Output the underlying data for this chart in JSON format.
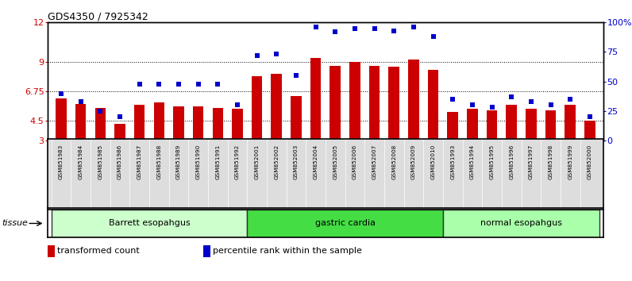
{
  "title": "GDS4350 / 7925342",
  "samples": [
    "GSM851983",
    "GSM851984",
    "GSM851985",
    "GSM851986",
    "GSM851987",
    "GSM851988",
    "GSM851989",
    "GSM851990",
    "GSM851991",
    "GSM851992",
    "GSM852001",
    "GSM852002",
    "GSM852003",
    "GSM852004",
    "GSM852005",
    "GSM852006",
    "GSM852007",
    "GSM852008",
    "GSM852009",
    "GSM852010",
    "GSM851993",
    "GSM851994",
    "GSM851995",
    "GSM851996",
    "GSM851997",
    "GSM851998",
    "GSM851999",
    "GSM852000"
  ],
  "bar_values": [
    6.2,
    5.8,
    5.5,
    4.3,
    5.7,
    5.9,
    5.6,
    5.6,
    5.5,
    5.4,
    7.9,
    8.1,
    6.4,
    9.3,
    8.7,
    9.0,
    8.7,
    8.6,
    9.2,
    8.4,
    5.2,
    5.4,
    5.3,
    5.7,
    5.4,
    5.3,
    5.7,
    4.5
  ],
  "percentile_values": [
    40,
    33,
    25,
    20,
    48,
    48,
    48,
    48,
    48,
    30,
    72,
    73,
    55,
    96,
    92,
    95,
    95,
    93,
    96,
    88,
    35,
    30,
    28,
    37,
    33,
    30,
    35,
    20
  ],
  "groups": [
    {
      "label": "Barrett esopahgus",
      "start": 0,
      "end": 10,
      "color": "#ccffcc"
    },
    {
      "label": "gastric cardia",
      "start": 10,
      "end": 20,
      "color": "#44dd44"
    },
    {
      "label": "normal esopahgus",
      "start": 20,
      "end": 28,
      "color": "#aaffaa"
    }
  ],
  "ylim": [
    3,
    12
  ],
  "yticks_left": [
    3,
    4.5,
    6.75,
    9,
    12
  ],
  "ytick_labels_left": [
    "3",
    "4.5",
    "6.75",
    "9",
    "12"
  ],
  "yticks_right_pct": [
    0,
    25,
    50,
    75,
    100
  ],
  "ytick_labels_right": [
    "0",
    "25",
    "50",
    "75",
    "100%"
  ],
  "hlines": [
    4.5,
    6.75,
    9.0
  ],
  "bar_color": "#cc0000",
  "dot_color": "#0000cc",
  "bar_width": 0.55,
  "legend_items": [
    {
      "color": "#cc0000",
      "label": "transformed count"
    },
    {
      "color": "#0000cc",
      "label": "percentile rank within the sample"
    }
  ],
  "tissue_label": "tissue"
}
